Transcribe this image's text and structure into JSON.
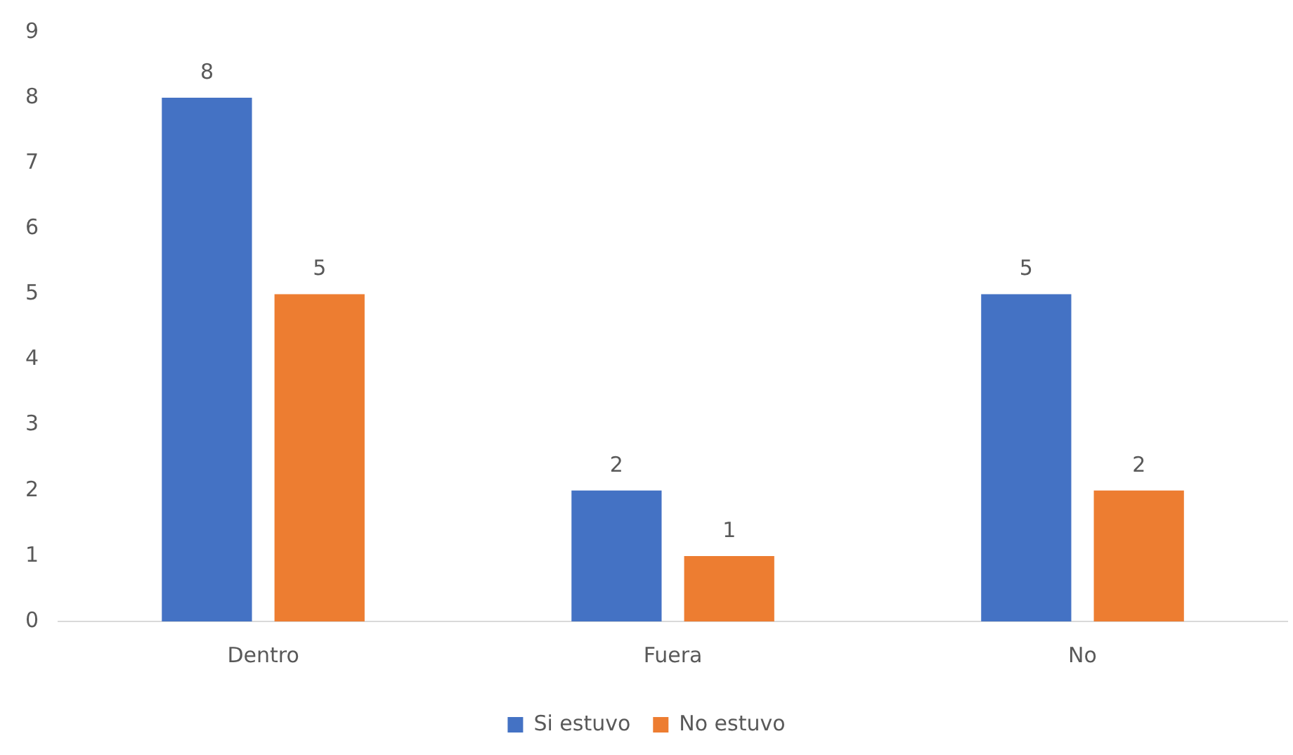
{
  "chart_data": {
    "type": "bar",
    "categories": [
      "Dentro",
      "Fuera",
      "No"
    ],
    "series": [
      {
        "name": "Si estuvo",
        "color": "#4472c4",
        "values": [
          8,
          2,
          5
        ]
      },
      {
        "name": "No estuvo",
        "color": "#ed7d31",
        "values": [
          5,
          1,
          2
        ]
      }
    ],
    "ylim": [
      0,
      9
    ],
    "yticks": [
      0,
      1,
      2,
      3,
      4,
      5,
      6,
      7,
      8,
      9
    ],
    "grid": false,
    "legend": "bottom",
    "data_labels": true
  }
}
